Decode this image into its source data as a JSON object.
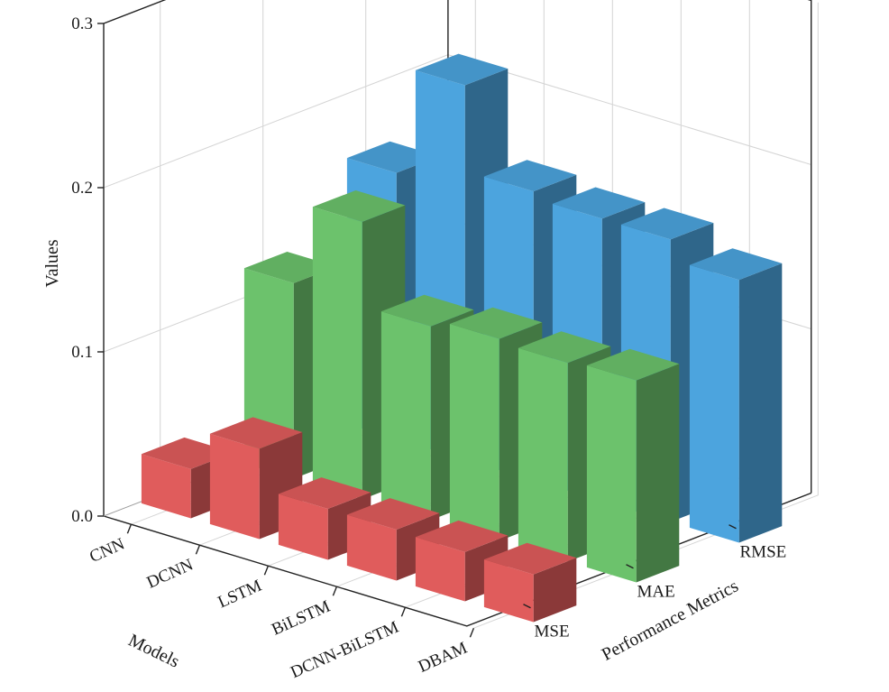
{
  "chart_data": {
    "type": "bar3d",
    "ylabel": "Values",
    "xlabel": "Models",
    "zlabel": "Performance Metrics",
    "ylim": [
      0,
      0.3
    ],
    "yticks": [
      "0.0",
      "0.1",
      "0.2",
      "0.3"
    ],
    "grid": true,
    "categories": [
      "CNN",
      "DCNN",
      "LSTM",
      "BiLSTM",
      "DCNN-BiLSTM",
      "DBAM"
    ],
    "series": [
      {
        "name": "MSE",
        "color": "#e05c5c",
        "values": [
          0.03,
          0.055,
          0.031,
          0.031,
          0.03,
          0.029
        ]
      },
      {
        "name": "MAE",
        "color": "#6cc26c",
        "values": [
          0.119,
          0.169,
          0.118,
          0.123,
          0.121,
          0.123
        ]
      },
      {
        "name": "RMSE",
        "color": "#4ca4de",
        "values": [
          0.162,
          0.228,
          0.176,
          0.172,
          0.172,
          0.16
        ]
      }
    ]
  }
}
